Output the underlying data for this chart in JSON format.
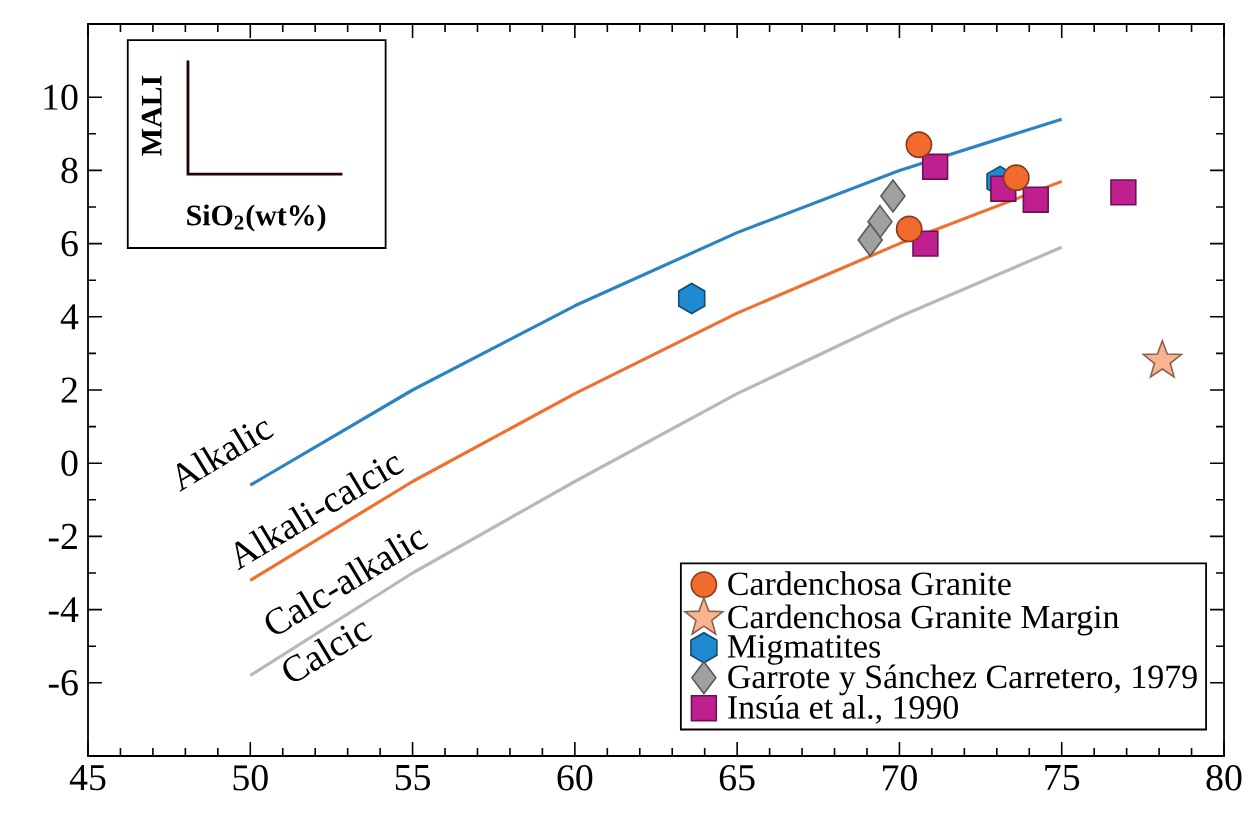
{
  "chart_data": {
    "type": "scatter",
    "xlabel": "SiO$_{2}$(wt%)",
    "ylabel": "MALI",
    "xlim": [
      45,
      80
    ],
    "ylim": [
      -8,
      12
    ],
    "xticks": [
      45,
      50,
      55,
      60,
      65,
      70,
      75,
      80
    ],
    "yticks": [
      -6,
      -4,
      -2,
      0,
      2,
      4,
      6,
      8,
      10
    ],
    "grid": false,
    "legend": "bottom right",
    "series": [
      {
        "type": "line",
        "color": "#2a84c4",
        "marker": "none",
        "x": [
          50,
          55,
          60,
          65,
          70,
          75
        ],
        "values": [
          -0.6,
          2.0,
          4.3,
          6.3,
          8.0,
          9.4
        ]
      },
      {
        "type": "line",
        "color": "#f07030",
        "marker": "none",
        "x": [
          50,
          55,
          60,
          65,
          70,
          75
        ],
        "values": [
          -3.2,
          -0.5,
          1.9,
          4.1,
          6.0,
          7.7
        ]
      },
      {
        "type": "line",
        "color": "#b8b8b8",
        "marker": "none",
        "x": [
          50,
          55,
          60,
          65,
          70,
          75
        ],
        "values": [
          -5.8,
          -3.0,
          -0.5,
          1.9,
          4.0,
          5.9
        ]
      },
      {
        "name": "Cardenchosa Granite",
        "color": "#f26b2e",
        "marker": "circle",
        "x": [
          70.6,
          70.3,
          73.6
        ],
        "values": [
          8.7,
          6.4,
          7.8
        ]
      },
      {
        "name": "Cardenchosa Granite Margin",
        "color": "#f9b38f",
        "marker": "star",
        "x": [
          78.1
        ],
        "values": [
          2.8
        ]
      },
      {
        "name": "Migmatites",
        "color": "#1f8ad0",
        "x": [
          63.6,
          73.1
        ],
        "values": [
          4.5,
          7.7
        ]
      },
      {
        "name": "Garrote y Sánchez Carretero, 1979",
        "color": "#a0a0a0",
        "marker": "diamond",
        "x": [
          69.8,
          69.4,
          69.1
        ],
        "values": [
          7.3,
          6.6,
          6.1
        ]
      },
      {
        "name": "Insúa et al., 1990",
        "color": "#c0208f",
        "marker": "square",
        "x": [
          71.1,
          70.8,
          73.2,
          74.2,
          76.9
        ],
        "values": [
          8.1,
          6.0,
          7.5,
          7.2,
          7.4
        ]
      }
    ],
    "annotations": [
      "Alkalic",
      "Alkali-calcic",
      "Calc-alkalic",
      "Calcic"
    ]
  }
}
